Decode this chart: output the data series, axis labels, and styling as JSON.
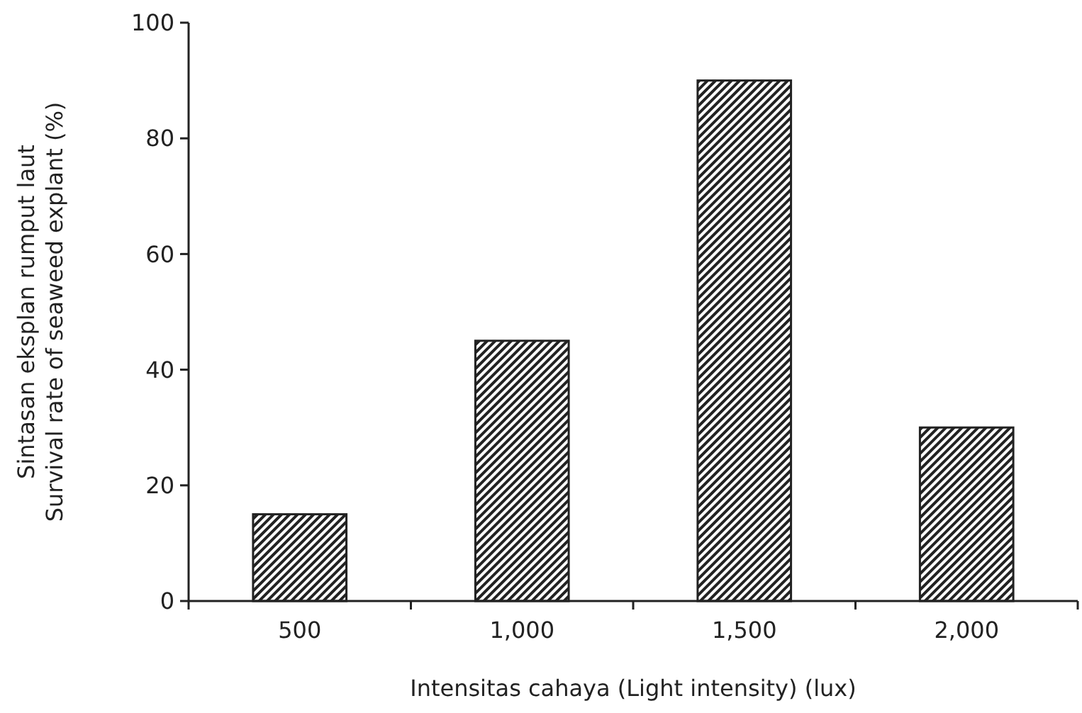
{
  "chart_data": {
    "type": "bar",
    "categories": [
      "500",
      "1,000",
      "1,500",
      "2,000"
    ],
    "values": [
      15,
      45,
      90,
      30
    ],
    "color": "#222222",
    "xlabel": "Intensitas cahaya (Light intensity) (lux)",
    "ylabel": "Sintasan eksplan rumput laut\nSurvival rate of seaweed explant (%)",
    "ylim": [
      0,
      100
    ],
    "yticks": [
      0,
      20,
      40,
      60,
      80,
      100
    ],
    "grid": false
  }
}
